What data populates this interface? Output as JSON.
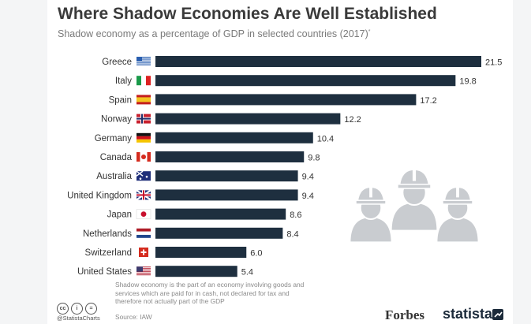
{
  "header": {
    "title": "Where Shadow Economies Are Well Established",
    "subtitle": "Shadow economy as a percentage of GDP in selected countries (2017)",
    "subtitle_mark": "*"
  },
  "footer": {
    "footnote": "Shadow economy is the part of an economy involving goods and services which are paid for in cash, not declared for tax and therefore not actually part of the GDP",
    "source": "Source: IAW",
    "handle": "@StatistaCharts",
    "forbes": "Forbes",
    "statista": "statista"
  },
  "icons": [
    "creative-commons-icon",
    "attribution-icon",
    "equals-icon",
    "worker-helmets-icon",
    "flag-icons"
  ],
  "colors": {
    "bar": "#1e2f3f",
    "text": "#333333"
  },
  "chart_data": {
    "type": "bar",
    "orientation": "horizontal",
    "categories": [
      "Greece",
      "Italy",
      "Spain",
      "Norway",
      "Germany",
      "Canada",
      "Australia",
      "United Kingdom",
      "Japan",
      "Netherlands",
      "Switzerland",
      "United States"
    ],
    "values": [
      21.5,
      19.8,
      17.2,
      12.2,
      10.4,
      9.8,
      9.4,
      9.4,
      8.6,
      8.4,
      6.0,
      5.4
    ],
    "value_labels": [
      "21.5",
      "19.8",
      "17.2",
      "12.2",
      "10.4",
      "9.8",
      "9.4",
      "9.4",
      "8.6",
      "8.4",
      "6.0",
      "5.4"
    ],
    "title": "Where Shadow Economies Are Well Established",
    "subtitle": "Shadow economy as a percentage of GDP in selected countries (2017)",
    "xlabel": "",
    "ylabel": "",
    "xlim": [
      0,
      21.5
    ],
    "grid": false,
    "legend": "none"
  }
}
